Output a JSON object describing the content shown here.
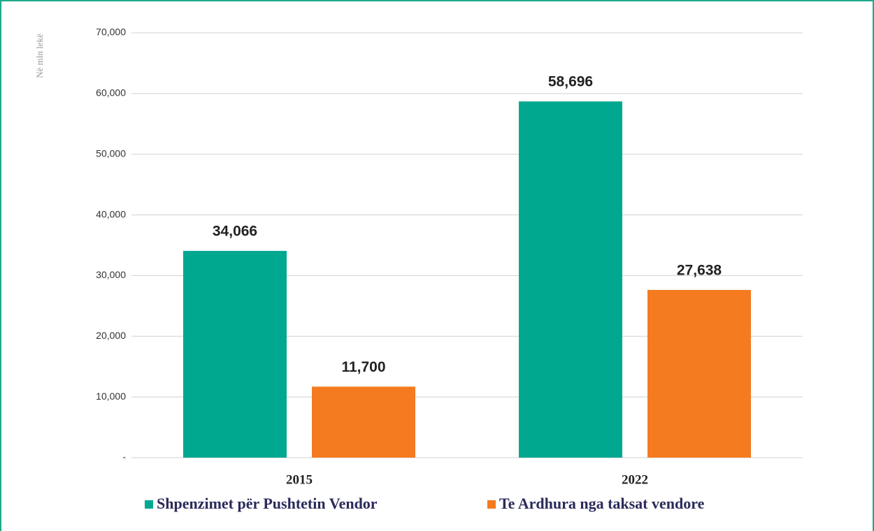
{
  "chart_data": {
    "type": "bar",
    "y_label": "Në mln lekë",
    "categories": [
      "2015",
      "2022"
    ],
    "series": [
      {
        "name": "Shpenzimet për Pushtetin Vendor",
        "color": "#00a88f",
        "values": [
          34066,
          58696
        ],
        "value_labels": [
          "34,066",
          "58,696"
        ]
      },
      {
        "name": "Te Ardhura nga taksat vendore",
        "color": "#f47b20",
        "values": [
          11700,
          27638
        ],
        "value_labels": [
          "11,700",
          "27,638"
        ]
      }
    ],
    "ylim": [
      0,
      70000
    ],
    "yticks": [
      {
        "value": 0,
        "label": "-"
      },
      {
        "value": 10000,
        "label": "10,000"
      },
      {
        "value": 20000,
        "label": "20,000"
      },
      {
        "value": 30000,
        "label": "30,000"
      },
      {
        "value": 40000,
        "label": "40,000"
      },
      {
        "value": 50000,
        "label": "50,000"
      },
      {
        "value": 60000,
        "label": "60,000"
      },
      {
        "value": 70000,
        "label": "70,000"
      }
    ],
    "grid": true
  }
}
